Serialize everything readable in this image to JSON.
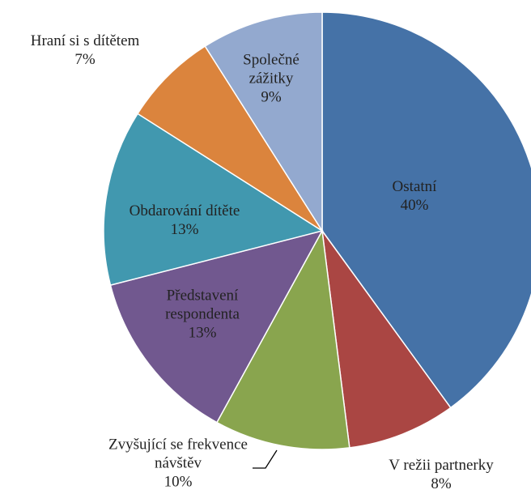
{
  "chart_data": {
    "type": "pie",
    "categories": [
      "Ostatní",
      "V režii partnerky",
      "Zvyšující se frekvence návštěv",
      "Představení respondenta",
      "Obdarování dítěte",
      "Hraní si s dítětem",
      "Společné zážitky"
    ],
    "values": [
      40,
      8,
      10,
      13,
      13,
      7,
      9
    ],
    "value_labels": [
      "40%",
      "8%",
      "10%",
      "13%",
      "13%",
      "7%",
      "9%"
    ],
    "colors": [
      "#4572a7",
      "#aa4643",
      "#89a54e",
      "#71588f",
      "#4198af",
      "#db843d",
      "#93a9cf"
    ]
  }
}
